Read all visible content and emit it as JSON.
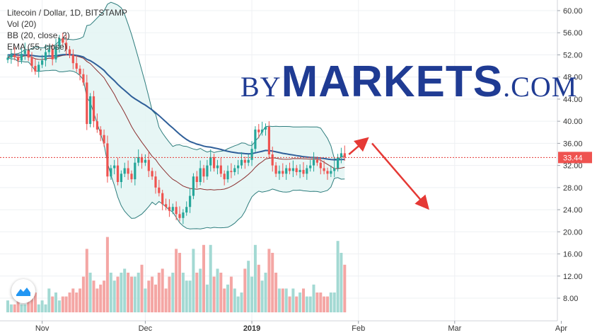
{
  "legend": {
    "title": "Litecoin / Dollar, 1D, BITSTAMP",
    "vol": "Vol (20)",
    "bb": "BB (20, close, 2)",
    "ema": "EMA (55, close)"
  },
  "watermark": {
    "by": "BY",
    "markets": "MARKETS",
    "com": ".COM"
  },
  "colors": {
    "up": "#26a69a",
    "down": "#ef5350",
    "vol_up": "#a3d9d3",
    "vol_down": "#f4a6a4",
    "bb_line": "#2e7d7d",
    "bb_fill": "#e3f4f3",
    "ema": "#2f5f99",
    "basis": "#8b2f2f",
    "price_line": "#e53935",
    "arrow": "#e53935",
    "price_tag": "#ef5350"
  },
  "chart_data": {
    "type": "candlestick",
    "ylim": [
      4.5,
      61.5
    ],
    "y_ticks": [
      "60.00",
      "56.00",
      "52.00",
      "48.00",
      "44.00",
      "40.00",
      "36.00",
      "32.00",
      "28.00",
      "24.00",
      "20.00",
      "16.00",
      "12.00",
      "8.00"
    ],
    "x_ticks": [
      {
        "label": "Nov",
        "date": "2018-11-01"
      },
      {
        "label": "Dec",
        "date": "2018-12-01"
      },
      {
        "label": "2019",
        "date": "2019-01-01",
        "bold": true
      },
      {
        "label": "Feb",
        "date": "2019-02-01"
      },
      {
        "label": "Mar",
        "date": "2019-03-01"
      },
      {
        "label": "Apr",
        "date": "2019-04-01"
      }
    ],
    "start_date": "2018-10-22",
    "last_price": "33.44",
    "last_price_value": 33.44,
    "closes": [
      51.5,
      52.0,
      51.6,
      51.0,
      52.2,
      52.8,
      51.5,
      50.0,
      49.0,
      50.2,
      51.0,
      52.5,
      53.0,
      51.2,
      53.5,
      55.0,
      54.2,
      53.0,
      52.0,
      50.5,
      49.5,
      48.5,
      47.0,
      39.5,
      44.5,
      40.0,
      38.5,
      37.5,
      36.0,
      30.0,
      31.5,
      32.0,
      29.0,
      30.5,
      31.5,
      30.5,
      29.5,
      32.5,
      33.5,
      32.5,
      33.0,
      31.0,
      30.0,
      28.0,
      27.0,
      25.0,
      24.5,
      23.8,
      24.5,
      23.2,
      22.5,
      23.5,
      24.5,
      26.5,
      30.0,
      29.0,
      31.5,
      30.0,
      32.0,
      33.5,
      31.5,
      32.0,
      30.5,
      29.5,
      31.0,
      30.8,
      31.5,
      32.0,
      33.0,
      32.5,
      33.0,
      35.0,
      38.5,
      38.0,
      38.5,
      39.0,
      34.0,
      32.0,
      30.5,
      31.0,
      30.5,
      31.5,
      31.0,
      31.5,
      30.8,
      31.2,
      30.5,
      31.5,
      32.0,
      33.0,
      32.5,
      31.5,
      31.0,
      30.5,
      31.0,
      31.5,
      33.5,
      34.2,
      33.44
    ],
    "volumes": [
      3,
      2,
      2,
      3,
      2,
      2,
      3,
      4,
      5,
      2,
      3,
      2,
      6,
      4,
      5,
      3,
      4,
      4,
      5,
      6,
      5,
      6,
      9,
      16,
      10,
      8,
      6,
      7,
      8,
      19,
      10,
      8,
      9,
      10,
      11,
      10,
      9,
      9,
      10,
      12,
      6,
      8,
      9,
      7,
      10,
      11,
      6,
      9,
      10,
      16,
      15,
      10,
      8,
      8,
      16,
      10,
      11,
      17,
      7,
      17,
      9,
      11,
      10,
      6,
      7,
      9,
      6,
      4,
      5,
      11,
      13,
      9,
      17,
      12,
      8,
      10,
      16,
      15,
      10,
      6,
      6,
      6,
      4,
      6,
      4,
      5,
      6,
      4,
      4,
      7,
      5,
      5,
      4,
      4,
      5,
      5,
      18,
      15,
      12
    ]
  }
}
